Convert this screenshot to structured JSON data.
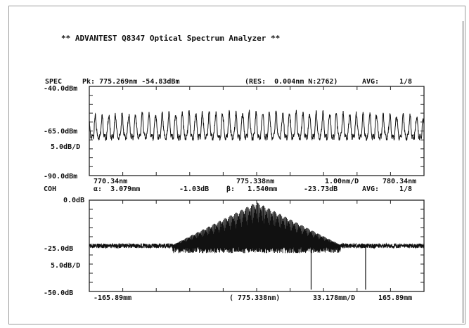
{
  "title": "** ADVANTEST Q8347 Optical Spectrum Analyzer **",
  "spec": {
    "mode": "SPEC",
    "peak_text": "Pk: 775.269nm -54.83dBm",
    "res_text": "(RES:  0.004nm N:2762)",
    "avg_label": "AVG:",
    "avg_value": "1/8",
    "ref_top": "-40.0dBm",
    "ref_mid": "-65.0dBm",
    "scale": "5.0dB/D",
    "ref_bottom": "-90.0dBm",
    "x_start": "770.34nm",
    "x_center": "775.338nm",
    "x_div": "1.00nm/D",
    "x_stop": "780.34nm"
  },
  "coh": {
    "mode": "COH",
    "alpha_text": "α:  3.079mm",
    "alpha_db": "-1.03dB",
    "beta_text": "β:   1.540mm",
    "beta_db": "-23.73dB",
    "avg_label": "AVG:",
    "avg_value": "1/8",
    "ref_top": "0.0dB",
    "ref_mid": "-25.0dB",
    "scale": "5.0dB/D",
    "ref_bottom": "-50.0dB",
    "x_start": "-165.89mm",
    "x_center": "( 775.338nm)",
    "x_div": "33.178mm/D",
    "x_stop": "165.89mm"
  },
  "chart_data": [
    {
      "type": "line",
      "title": "SPEC",
      "xlabel": "",
      "ylabel": "",
      "xlim": [
        770.34,
        780.34
      ],
      "ylim": [
        -90,
        -40
      ],
      "grid": false,
      "fringe_count": 50,
      "series": [
        {
          "peaks_dBm_center": -54.83,
          "peaks_dBm_edge": -58.5,
          "troughs_dBm": -68.5
        }
      ]
    },
    {
      "type": "line",
      "title": "COH",
      "xlabel": "",
      "ylabel": "",
      "xlim": [
        -165.89,
        165.89
      ],
      "ylim": [
        -50,
        0
      ],
      "grid": false,
      "envelope_base_mm": 85,
      "noise_floor_dB": -25.0,
      "markers": [
        {
          "x_mm": 0.0,
          "y_dB": -1.03
        },
        {
          "x_mm": 54.0,
          "y_dB": -49.0
        },
        {
          "x_mm": 108.0,
          "y_dB": -49.0
        }
      ]
    }
  ]
}
